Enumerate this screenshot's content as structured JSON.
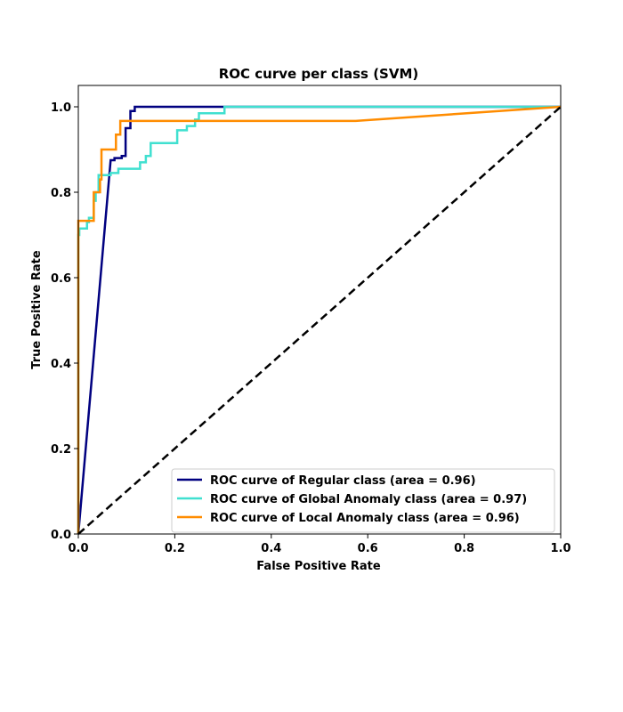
{
  "chart_data": {
    "type": "line",
    "title": "ROC curve per class (SVM)",
    "xlabel": "False Positive Rate",
    "ylabel": "True Positive Rate",
    "xlim": [
      0.0,
      1.0
    ],
    "ylim": [
      0.0,
      1.05
    ],
    "xticks": [
      "0.0",
      "0.2",
      "0.4",
      "0.6",
      "0.8",
      "1.0"
    ],
    "yticks": [
      "0.0",
      "0.2",
      "0.4",
      "0.6",
      "0.8",
      "1.0"
    ],
    "grid": false,
    "legend_position": "lower-right",
    "series": [
      {
        "name": "ROC curve of Regular class (area = 0.96)",
        "color": "#000080",
        "points": [
          [
            0,
            0
          ],
          [
            0.067,
            0.875
          ],
          [
            0.075,
            0.875
          ],
          [
            0.075,
            0.88
          ],
          [
            0.09,
            0.88
          ],
          [
            0.09,
            0.885
          ],
          [
            0.098,
            0.885
          ],
          [
            0.098,
            0.95
          ],
          [
            0.108,
            0.95
          ],
          [
            0.108,
            0.99
          ],
          [
            0.117,
            0.99
          ],
          [
            0.117,
            1.0
          ],
          [
            0.3,
            1.0
          ],
          [
            1.0,
            1.0
          ]
        ]
      },
      {
        "name": "ROC curve of Global Anomaly class (area = 0.97)",
        "color": "#40e0d0",
        "points": [
          [
            0,
            0
          ],
          [
            0,
            0.7
          ],
          [
            0.002,
            0.7
          ],
          [
            0.002,
            0.715
          ],
          [
            0.018,
            0.715
          ],
          [
            0.018,
            0.73
          ],
          [
            0.022,
            0.73
          ],
          [
            0.022,
            0.74
          ],
          [
            0.032,
            0.74
          ],
          [
            0.032,
            0.78
          ],
          [
            0.036,
            0.78
          ],
          [
            0.036,
            0.8
          ],
          [
            0.042,
            0.8
          ],
          [
            0.042,
            0.84
          ],
          [
            0.067,
            0.84
          ],
          [
            0.067,
            0.845
          ],
          [
            0.083,
            0.845
          ],
          [
            0.083,
            0.855
          ],
          [
            0.128,
            0.855
          ],
          [
            0.128,
            0.87
          ],
          [
            0.14,
            0.87
          ],
          [
            0.14,
            0.885
          ],
          [
            0.15,
            0.885
          ],
          [
            0.15,
            0.915
          ],
          [
            0.205,
            0.915
          ],
          [
            0.205,
            0.945
          ],
          [
            0.225,
            0.945
          ],
          [
            0.225,
            0.955
          ],
          [
            0.242,
            0.955
          ],
          [
            0.242,
            0.97
          ],
          [
            0.25,
            0.97
          ],
          [
            0.25,
            0.985
          ],
          [
            0.303,
            0.985
          ],
          [
            0.303,
            1.0
          ],
          [
            1.0,
            1.0
          ]
        ]
      },
      {
        "name": "ROC curve of Local Anomaly class (area = 0.96)",
        "color": "#ff8c00",
        "points": [
          [
            0,
            0
          ],
          [
            0,
            0.733
          ],
          [
            0.032,
            0.733
          ],
          [
            0.032,
            0.8
          ],
          [
            0.045,
            0.8
          ],
          [
            0.045,
            0.83
          ],
          [
            0.048,
            0.83
          ],
          [
            0.048,
            0.9
          ],
          [
            0.078,
            0.9
          ],
          [
            0.078,
            0.935
          ],
          [
            0.087,
            0.935
          ],
          [
            0.087,
            0.967
          ],
          [
            0.575,
            0.967
          ],
          [
            1.0,
            1.0
          ]
        ]
      },
      {
        "name": "",
        "color": "#000000",
        "dashed": true,
        "points": [
          [
            0,
            0
          ],
          [
            1,
            1
          ]
        ]
      }
    ]
  }
}
